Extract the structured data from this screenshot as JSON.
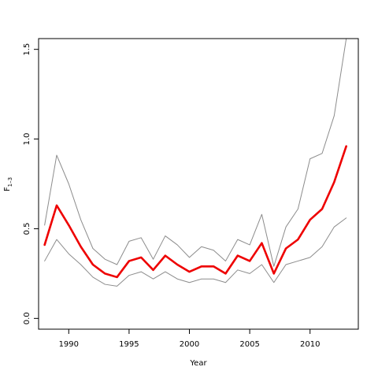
{
  "chart_data": {
    "type": "line",
    "title": "",
    "xlabel": "Year",
    "ylabel_main": "F",
    "ylabel_sub": "1–3",
    "xlim": [
      1987.5,
      2014
    ],
    "ylim": [
      -0.06,
      1.56
    ],
    "x_ticks": [
      1990,
      1995,
      2000,
      2005,
      2010
    ],
    "y_ticks": [
      0.0,
      0.5,
      1.0,
      1.5
    ],
    "y_tick_labels": [
      "0.0",
      "0.5",
      "1.0",
      "1.5"
    ],
    "grid": false,
    "x": [
      1988,
      1989,
      1990,
      1991,
      1992,
      1993,
      1994,
      1995,
      1996,
      1997,
      1998,
      1999,
      2000,
      2001,
      2002,
      2003,
      2004,
      2005,
      2006,
      2007,
      2008,
      2009,
      2010,
      2011,
      2012,
      2013
    ],
    "series": [
      {
        "role": "upper",
        "color": "#8c8c8c",
        "values": [
          0.52,
          0.91,
          0.75,
          0.55,
          0.39,
          0.33,
          0.3,
          0.43,
          0.45,
          0.33,
          0.46,
          0.41,
          0.34,
          0.4,
          0.38,
          0.32,
          0.44,
          0.41,
          0.58,
          0.29,
          0.51,
          0.61,
          0.89,
          0.92,
          1.13,
          1.56
        ]
      },
      {
        "role": "estimate",
        "color": "#ee0000",
        "values": [
          0.41,
          0.63,
          0.52,
          0.4,
          0.3,
          0.25,
          0.23,
          0.32,
          0.34,
          0.27,
          0.35,
          0.3,
          0.26,
          0.29,
          0.29,
          0.25,
          0.35,
          0.32,
          0.42,
          0.25,
          0.39,
          0.44,
          0.55,
          0.61,
          0.76,
          0.96
        ]
      },
      {
        "role": "lower",
        "color": "#8c8c8c",
        "values": [
          0.32,
          0.44,
          0.36,
          0.3,
          0.23,
          0.19,
          0.18,
          0.24,
          0.26,
          0.22,
          0.26,
          0.22,
          0.2,
          0.22,
          0.22,
          0.2,
          0.27,
          0.25,
          0.3,
          0.2,
          0.3,
          0.32,
          0.34,
          0.4,
          0.51,
          0.56
        ]
      }
    ]
  }
}
